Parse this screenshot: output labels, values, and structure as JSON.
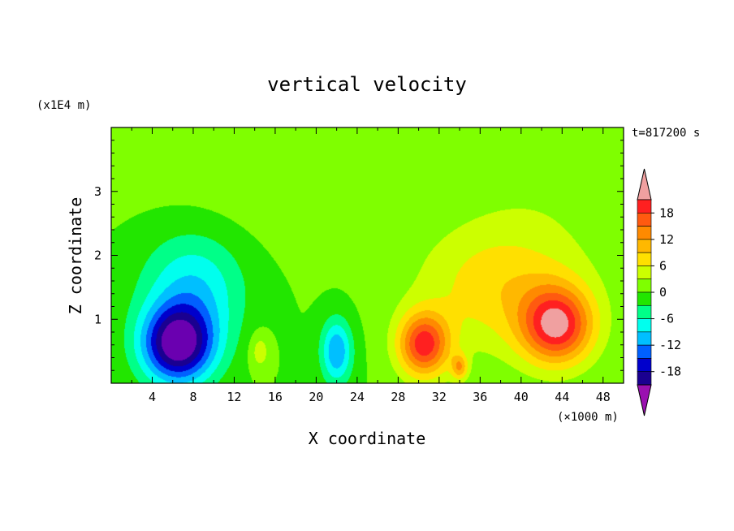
{
  "chart_data": {
    "type": "heatmap",
    "title": "vertical velocity",
    "xlabel": "X coordinate",
    "ylabel": "Z coordinate",
    "x_unit": "(×1000 m)",
    "y_unit": "(x1E4 m)",
    "time_label": "t=817200 s",
    "xlim": [
      0,
      50
    ],
    "ylim": [
      0,
      4
    ],
    "x_ticks": [
      4,
      8,
      12,
      16,
      20,
      24,
      28,
      32,
      36,
      40,
      44,
      48
    ],
    "y_ticks": [
      1,
      2,
      3
    ],
    "colorbar": {
      "labels": [
        18,
        12,
        6,
        0,
        -6,
        -12,
        -18
      ],
      "levels": [
        21,
        18,
        15,
        12,
        9,
        6,
        3,
        0,
        -3,
        -6,
        -9,
        -12,
        -15,
        -18,
        -21
      ],
      "colors": [
        "#f0a0a0",
        "#ff2020",
        "#ff5a10",
        "#ff8a00",
        "#ffb800",
        "#ffe000",
        "#ccff00",
        "#7fff00",
        "#22e600",
        "#00ff88",
        "#00ffee",
        "#00bfff",
        "#0060ff",
        "#0000cc",
        "#1a0090",
        "#6a00b0",
        "#9a10b0"
      ],
      "extend": "both"
    },
    "field": {
      "background": 0,
      "features": [
        {
          "x": 6.5,
          "z": 0.6,
          "amplitude": -23,
          "sx": 3.5,
          "sz": 0.6
        },
        {
          "x": 8.0,
          "z": 1.5,
          "amplitude": -9,
          "sx": 5.0,
          "sz": 0.9
        },
        {
          "x": 14.5,
          "z": 0.5,
          "amplitude": 5,
          "sx": 1.0,
          "sz": 0.3
        },
        {
          "x": 22.0,
          "z": 0.5,
          "amplitude": -12,
          "sx": 1.5,
          "sz": 0.5
        },
        {
          "x": 30.5,
          "z": 0.6,
          "amplitude": 19,
          "sx": 2.5,
          "sz": 0.5
        },
        {
          "x": 43.5,
          "z": 0.9,
          "amplitude": 20,
          "sx": 3.5,
          "sz": 0.6
        },
        {
          "x": 38.0,
          "z": 1.5,
          "amplitude": 8,
          "sx": 8.0,
          "sz": 1.0
        },
        {
          "x": 34.0,
          "z": 0.25,
          "amplitude": 10,
          "sx": 0.8,
          "sz": 0.2
        },
        {
          "x": 12.0,
          "z": 3.0,
          "amplitude": 1.5,
          "sx": 10.0,
          "sz": 1.2
        },
        {
          "x": 42.0,
          "z": 3.0,
          "amplitude": 1.5,
          "sx": 8.0,
          "sz": 1.2
        }
      ]
    }
  }
}
